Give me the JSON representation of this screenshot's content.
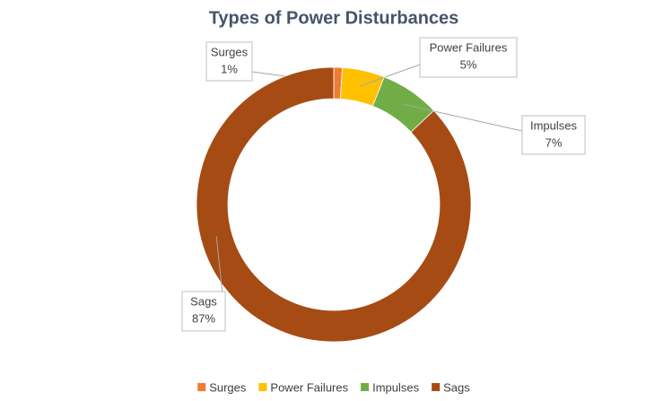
{
  "chart_data": {
    "type": "donut",
    "title": "Types of Power Disturbances",
    "categories": [
      "Surges",
      "Power Failures",
      "Impulses",
      "Sags"
    ],
    "values": [
      1,
      5,
      7,
      87
    ],
    "value_labels": [
      "1%",
      "5%",
      "7%",
      "87%"
    ],
    "colors": [
      "#ed7d31",
      "#ffc000",
      "#70ad47",
      "#a64b14"
    ],
    "legend": "bottom"
  }
}
